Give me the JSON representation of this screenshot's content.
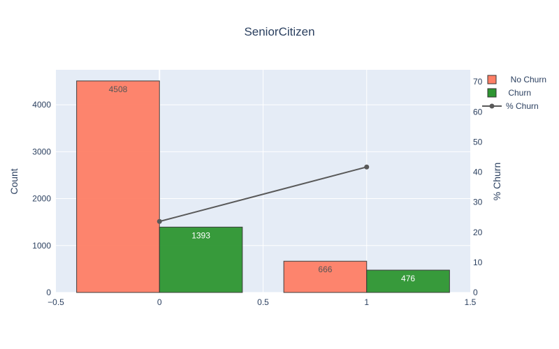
{
  "chart_data": {
    "type": "bar",
    "title": "SeniorCitizen",
    "x": [
      0,
      1
    ],
    "xlim": [
      -0.5,
      1.5
    ],
    "xticks": [
      "−0.5",
      "0",
      "0.5",
      "1",
      "1.5"
    ],
    "xtick_values": [
      -0.5,
      0,
      0.5,
      1,
      1.5
    ],
    "ylabel": "Count",
    "ylim": [
      0,
      4745
    ],
    "yticks": [
      0,
      1000,
      2000,
      3000,
      4000
    ],
    "y2label": "% Churn",
    "y2lim": [
      0,
      74
    ],
    "y2ticks": [
      0,
      10,
      20,
      30,
      40,
      50,
      60,
      70
    ],
    "grid": true,
    "legend_position": "top-right",
    "series": [
      {
        "name": "  No Churn",
        "type": "bar",
        "axis": "left",
        "color": "#ff7f66",
        "values": [
          4508,
          666
        ],
        "label_color": "#555555"
      },
      {
        "name": " Churn",
        "type": "bar",
        "axis": "left",
        "color": "#2e9632",
        "values": [
          1393,
          476
        ],
        "label_color": "#ffffff"
      },
      {
        "name": "% Churn",
        "type": "line",
        "axis": "right",
        "color": "#595959",
        "values": [
          23.6,
          41.7
        ]
      }
    ]
  }
}
